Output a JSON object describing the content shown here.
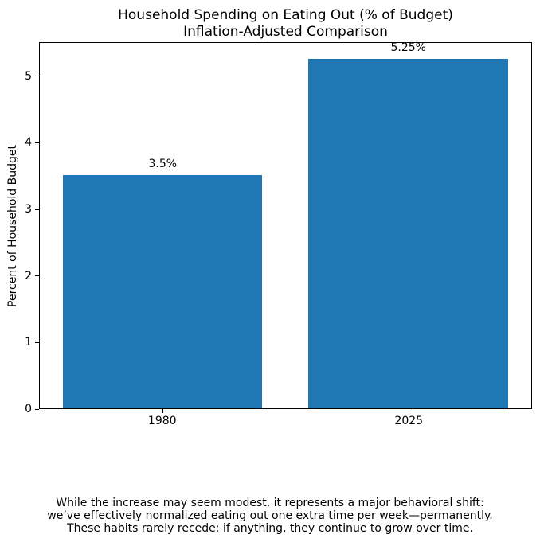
{
  "title": {
    "line1": "Household Spending on Eating Out (% of Budget)",
    "line2": "Inflation-Adjusted Comparison"
  },
  "chart_data": {
    "type": "bar",
    "title": "Household Spending on Eating Out (% of Budget)\nInflation-Adjusted Comparison",
    "categories": [
      "1980",
      "2025"
    ],
    "values": [
      3.5,
      5.25
    ],
    "bar_labels": [
      "3.5%",
      "5.25%"
    ],
    "xlabel": "",
    "ylabel": "Percent of Household Budget",
    "ylim": [
      0,
      5.5125
    ],
    "yticks": [
      0,
      1,
      2,
      3,
      4,
      5
    ],
    "bar_color": "#1f77b4",
    "grid": false,
    "legend_position": "none"
  },
  "footer": {
    "line1": "While the increase may seem modest, it represents a major behavioral shift:",
    "line2": "we’ve effectively normalized eating out one extra time per week—permanently.",
    "line3": "These habits rarely recede; if anything, they continue to grow over time."
  }
}
